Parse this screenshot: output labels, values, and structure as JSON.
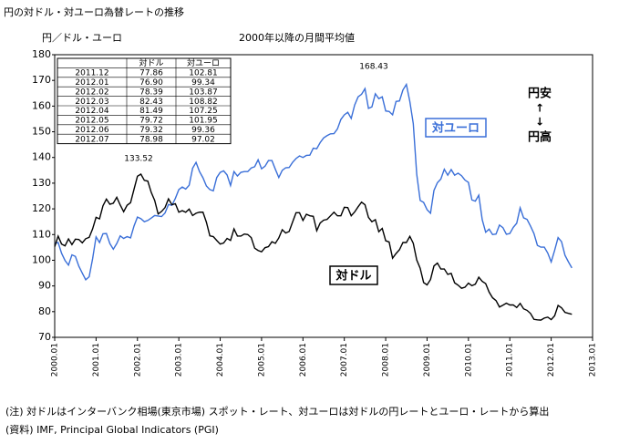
{
  "chart_data": {
    "type": "line",
    "title": "円の対ドル・対ユーロ為替レートの推移",
    "y_label": "円／ドル・ユーロ",
    "subtitle": "2000年以降の月間平均値",
    "ylim": [
      70,
      180
    ],
    "yticks": [
      70,
      80,
      90,
      100,
      110,
      120,
      130,
      140,
      150,
      160,
      170,
      180
    ],
    "categories": [
      "2000.01",
      null,
      null,
      null,
      null,
      null,
      null,
      null,
      null,
      null,
      null,
      null,
      "2001.01",
      null,
      null,
      null,
      null,
      null,
      null,
      null,
      null,
      null,
      null,
      null,
      "2002.01",
      null,
      null,
      null,
      null,
      null,
      null,
      null,
      null,
      null,
      null,
      null,
      "2003.01",
      null,
      null,
      null,
      null,
      null,
      null,
      null,
      null,
      null,
      null,
      null,
      "2004.01",
      null,
      null,
      null,
      null,
      null,
      null,
      null,
      null,
      null,
      null,
      null,
      "2005.01",
      null,
      null,
      null,
      null,
      null,
      null,
      null,
      null,
      null,
      null,
      null,
      "2006.01",
      null,
      null,
      null,
      null,
      null,
      null,
      null,
      null,
      null,
      null,
      null,
      "2007.01",
      null,
      null,
      null,
      null,
      null,
      null,
      null,
      null,
      null,
      null,
      null,
      "2008.01",
      null,
      null,
      null,
      null,
      null,
      null,
      null,
      null,
      null,
      null,
      null,
      "2009.01",
      null,
      null,
      null,
      null,
      null,
      null,
      null,
      null,
      null,
      null,
      null,
      "2010.01",
      null,
      null,
      null,
      null,
      null,
      null,
      null,
      null,
      null,
      null,
      null,
      "2011.01",
      null,
      null,
      null,
      null,
      null,
      null,
      null,
      null,
      null,
      null,
      null,
      "2012.01",
      null,
      null,
      null,
      null,
      null,
      null,
      null,
      null,
      null,
      null,
      null,
      "2013.01"
    ],
    "series": [
      {
        "name": "対ユーロ",
        "color": "#3a6fd8",
        "values": [
          106.5,
          106.9,
          102.7,
          99.9,
          98.1,
          102.1,
          101.5,
          97.7,
          95.0,
          92.4,
          93.6,
          100.6,
          109.1,
          106.9,
          110.3,
          110.4,
          106.5,
          104.3,
          106.5,
          109.5,
          108.5,
          109.2,
          108.7,
          113.3,
          116.8,
          116.2,
          115.0,
          115.5,
          116.4,
          117.4,
          117.2,
          117.0,
          118.4,
          121.7,
          121.4,
          124.1,
          127.5,
          128.5,
          127.7,
          129.2,
          135.8,
          138.1,
          134.5,
          132.1,
          128.9,
          127.5,
          127.0,
          132.2,
          134.2,
          134.8,
          133.2,
          129.1,
          134.5,
          132.8,
          134.2,
          134.5,
          134.5,
          135.9,
          136.4,
          139.1,
          135.6,
          136.6,
          138.8,
          138.8,
          135.4,
          132.2,
          135.0,
          136.0,
          136.1,
          138.1,
          139.6,
          140.6,
          140.0,
          140.8,
          140.9,
          143.6,
          143.4,
          145.8,
          147.6,
          148.5,
          149.2,
          149.3,
          151.1,
          154.8,
          156.6,
          157.6,
          155.2,
          160.4,
          163.6,
          164.6,
          166.8,
          159.1,
          159.7,
          164.8,
          162.9,
          163.6,
          158.1,
          157.9,
          156.6,
          161.8,
          162.0,
          166.3,
          168.43,
          161.8,
          153.2,
          133.5,
          123.3,
          122.5,
          119.7,
          118.3,
          127.2,
          130.2,
          131.6,
          135.4,
          133.1,
          135.3,
          133.1,
          133.9,
          132.9,
          131.2,
          130.3,
          123.5,
          123.0,
          125.3,
          115.8,
          110.9,
          112.1,
          110.0,
          110.2,
          113.7,
          112.7,
          110.1,
          110.4,
          112.8,
          114.4,
          120.4,
          116.5,
          115.9,
          113.3,
          110.4,
          105.8,
          105.1,
          105.1,
          102.81,
          99.34,
          103.87,
          108.82,
          107.25,
          101.95,
          99.36,
          97.02,
          null,
          null,
          null,
          null,
          null,
          null
        ]
      },
      {
        "name": "対ドル",
        "color": "#000000",
        "values": [
          105.3,
          109.4,
          106.3,
          105.6,
          108.3,
          106.1,
          108.2,
          108.1,
          106.8,
          108.4,
          108.9,
          112.2,
          116.7,
          116.1,
          121.2,
          123.8,
          121.8,
          122.2,
          124.5,
          121.5,
          118.9,
          121.4,
          122.4,
          127.6,
          132.7,
          133.52,
          131.1,
          130.8,
          126.4,
          123.3,
          118.0,
          119.0,
          120.5,
          123.9,
          121.6,
          122.0,
          118.7,
          119.3,
          118.7,
          119.9,
          117.4,
          118.3,
          118.7,
          118.7,
          114.8,
          109.5,
          109.2,
          107.7,
          106.3,
          106.7,
          108.5,
          107.7,
          112.2,
          109.4,
          109.4,
          110.2,
          110.0,
          108.8,
          104.7,
          103.8,
          103.3,
          104.9,
          105.3,
          107.2,
          106.6,
          108.7,
          111.9,
          110.6,
          111.2,
          114.9,
          118.5,
          118.5,
          115.5,
          117.9,
          117.3,
          117.1,
          111.5,
          114.5,
          115.6,
          115.9,
          117.3,
          118.7,
          117.3,
          117.3,
          120.6,
          120.5,
          117.3,
          118.8,
          120.8,
          122.6,
          121.6,
          116.7,
          115.0,
          115.8,
          111.1,
          112.4,
          107.6,
          107.1,
          100.8,
          102.6,
          104.1,
          106.9,
          106.9,
          109.3,
          106.6,
          100.1,
          96.9,
          91.3,
          90.4,
          92.5,
          97.8,
          98.9,
          96.6,
          96.6,
          94.5,
          94.9,
          91.2,
          90.3,
          89.1,
          89.5,
          91.1,
          90.1,
          90.7,
          93.4,
          91.8,
          90.9,
          87.6,
          85.4,
          84.3,
          81.8,
          82.5,
          83.3,
          82.6,
          82.6,
          81.6,
          83.2,
          81.1,
          80.5,
          79.3,
          77.0,
          76.8,
          76.7,
          77.5,
          77.86,
          76.9,
          78.39,
          82.43,
          81.49,
          79.72,
          79.32,
          78.98,
          null,
          null,
          null,
          null,
          null,
          null
        ]
      }
    ],
    "annotations": {
      "euro_peak": "168.43",
      "dollar_peak": "133.52",
      "weak_yen": "円安",
      "up": "↑",
      "down": "↓",
      "strong_yen": "円高"
    },
    "table": {
      "header": [
        "対ドル",
        "対ユーロ"
      ],
      "rows": [
        [
          "2011.12",
          "77.86",
          "102.81"
        ],
        [
          "2012.01",
          "76.90",
          "99.34"
        ],
        [
          "2012.02",
          "78.39",
          "103.87"
        ],
        [
          "2012.03",
          "82.43",
          "108.82"
        ],
        [
          "2012.04",
          "81.49",
          "107.25"
        ],
        [
          "2012.05",
          "79.72",
          "101.95"
        ],
        [
          "2012.06",
          "79.32",
          "99.36"
        ],
        [
          "2012.07",
          "78.98",
          "97.02"
        ]
      ]
    },
    "notes": [
      "(注) 対ドルはインターバンク相場(東京市場) スポット・レート、対ユーロは対ドルの円レートとユーロ・レートから算出",
      "(資料) IMF, Principal Global Indicators (PGI)"
    ]
  }
}
